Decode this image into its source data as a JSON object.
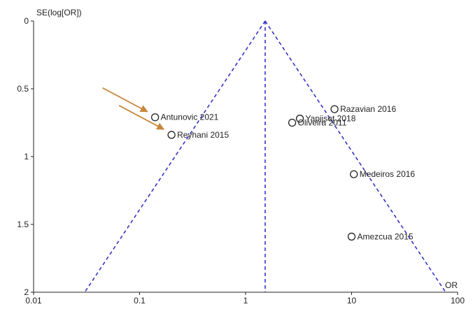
{
  "chart_data": {
    "type": "scatter",
    "subtype": "funnel-plot",
    "title": "",
    "ylabel": "SE(log[OR])",
    "xlabel": "OR",
    "x_scale": "log",
    "xlim": [
      0.01,
      100
    ],
    "ylim": [
      0,
      2
    ],
    "y_inverted": true,
    "x_ticks": [
      0.01,
      0.1,
      1,
      10,
      100
    ],
    "x_tick_labels": [
      "0.01",
      "0.1",
      "1",
      "10",
      "100"
    ],
    "y_ticks": [
      0,
      0.5,
      1,
      1.5,
      2
    ],
    "y_tick_labels": [
      "0",
      "0.5",
      "1",
      "1.5",
      "2"
    ],
    "pooled_or": 1.53,
    "funnel_limits": "95% pseudo-confidence limits (dashed)",
    "points": [
      {
        "label": "Antunovic  2021",
        "or": 0.14,
        "se": 0.71,
        "highlighted": true
      },
      {
        "label": "Reyhani 2015",
        "or": 0.2,
        "se": 0.84,
        "highlighted": true
      },
      {
        "label": "Razavian 2016",
        "or": 6.9,
        "se": 0.65,
        "highlighted": false
      },
      {
        "label": "Yapijset 2018",
        "or": 3.25,
        "se": 0.72,
        "highlighted": false
      },
      {
        "label": "Oliveira 2011",
        "or": 2.75,
        "se": 0.75,
        "highlighted": false
      },
      {
        "label": "Medeiros 2016",
        "or": 10.5,
        "se": 1.13,
        "highlighted": false
      },
      {
        "label": "Amezcua 2015",
        "or": 10.0,
        "se": 1.59,
        "highlighted": false
      }
    ],
    "colors": {
      "funnel_line": "#3333cc",
      "marker_stroke": "#222222",
      "axis": "#222222",
      "arrow": "#c8863a"
    }
  }
}
